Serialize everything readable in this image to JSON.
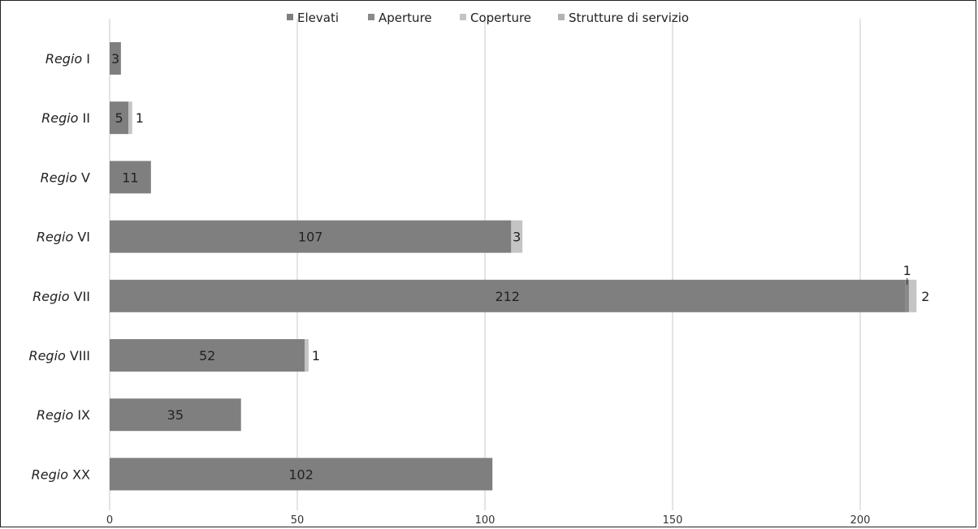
{
  "chart_data": {
    "type": "bar",
    "orientation": "horizontal",
    "stacked": true,
    "title": "",
    "xlabel": "",
    "ylabel": "",
    "xlim": [
      0,
      230
    ],
    "x_ticks": [
      0,
      50,
      100,
      150,
      200
    ],
    "grid": true,
    "legend_position": "top",
    "categories": [
      {
        "prefix": "Regio",
        "numeral": "I"
      },
      {
        "prefix": "Regio",
        "numeral": "II"
      },
      {
        "prefix": "Regio",
        "numeral": "V"
      },
      {
        "prefix": "Regio",
        "numeral": "VI"
      },
      {
        "prefix": "Regio",
        "numeral": "VII"
      },
      {
        "prefix": "Regio",
        "numeral": "VIII"
      },
      {
        "prefix": "Regio",
        "numeral": "IX"
      },
      {
        "prefix": "Regio",
        "numeral": "XX"
      }
    ],
    "series": [
      {
        "name": "Elevati",
        "color": "#7f7f7f",
        "values": [
          3,
          5,
          11,
          107,
          212,
          52,
          35,
          102
        ]
      },
      {
        "name": "Aperture",
        "color": "#8a8a8a",
        "values": [
          0,
          0,
          0,
          0,
          1,
          0,
          0,
          0
        ]
      },
      {
        "name": "Coperture",
        "color": "#c4c4c4",
        "values": [
          0,
          1,
          0,
          3,
          2,
          1,
          0,
          0
        ]
      },
      {
        "name": "Strutture di servizio",
        "color": "#b3b3b3",
        "values": [
          0,
          0,
          0,
          0,
          0,
          0,
          0,
          0
        ]
      }
    ]
  }
}
